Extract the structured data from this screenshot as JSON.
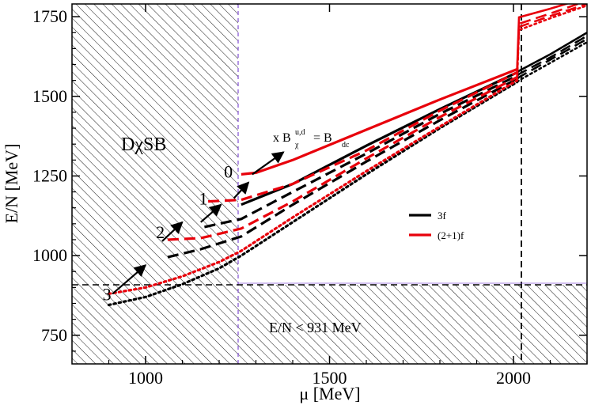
{
  "chart_data": {
    "type": "line",
    "xlabel": "μ [MeV]",
    "ylabel": "E/N [MeV]",
    "xlim": [
      800,
      2200
    ],
    "ylim": [
      660,
      1790
    ],
    "xticks": [
      1000,
      1500,
      2000
    ],
    "yticks": [
      750,
      1000,
      1250,
      1500,
      1750
    ],
    "region_labels": {
      "dcsb": "DχSB",
      "lower": "E/N < 931 MeV"
    },
    "annotation": {
      "prefix": "x B",
      "sup": "u,d",
      "sub": "χ",
      "eq": "= B",
      "eq_sub": "dc"
    },
    "reference_lines": {
      "x_boundary": 1250,
      "x_transition": 2015,
      "y_nucleon": 941
    },
    "point_labels": [
      {
        "text": "0",
        "x": 1225,
        "y": 1245
      },
      {
        "text": "1",
        "x": 1157,
        "y": 1160
      },
      {
        "text": "2",
        "x": 1040,
        "y": 1055
      },
      {
        "text": "3",
        "x": 895,
        "y": 860
      }
    ],
    "arrows": [
      {
        "from": [
          1290,
          1255
        ],
        "to": [
          1375,
          1325
        ]
      },
      {
        "from": [
          1240,
          1180
        ],
        "to": [
          1280,
          1230
        ]
      },
      {
        "from": [
          1150,
          1105
        ],
        "to": [
          1205,
          1160
        ]
      },
      {
        "from": [
          1045,
          1045
        ],
        "to": [
          1100,
          1105
        ]
      },
      {
        "from": [
          910,
          880
        ],
        "to": [
          1000,
          970
        ]
      }
    ],
    "legend": [
      {
        "label": "3f",
        "color": "#000000"
      },
      {
        "label": "(2+1)f",
        "color": "#e8000b"
      }
    ],
    "series": [
      {
        "name": "3f n=0",
        "color": "#000000",
        "dash": "solid",
        "x": [
          1260,
          1400,
          1600,
          1800,
          2010
        ],
        "y": [
          1160,
          1225,
          1345,
          1460,
          1575
        ],
        "x2": [
          2015,
          2100,
          2200
        ],
        "y2": [
          1580,
          1632,
          1700
        ]
      },
      {
        "name": "3f n=1",
        "color": "#000000",
        "dash": "long",
        "x": [
          1160,
          1260,
          1400,
          1600,
          1800,
          2010
        ],
        "y": [
          1090,
          1115,
          1200,
          1320,
          1445,
          1565
        ],
        "x2": [
          2015,
          2100,
          2200
        ],
        "y2": [
          1570,
          1622,
          1690
        ]
      },
      {
        "name": "3f n=2",
        "color": "#000000",
        "dash": "long",
        "x": [
          1060,
          1150,
          1260,
          1400,
          1600,
          1800,
          2010
        ],
        "y": [
          995,
          1020,
          1060,
          1160,
          1295,
          1425,
          1555
        ],
        "x2": [
          2015,
          2100,
          2200
        ],
        "y2": [
          1560,
          1615,
          1680
        ]
      },
      {
        "name": "3f n=3",
        "color": "#000000",
        "dash": "dot",
        "x": [
          900,
          1000,
          1100,
          1200,
          1260,
          1400,
          1600,
          1800,
          2010
        ],
        "y": [
          845,
          870,
          910,
          960,
          1000,
          1105,
          1255,
          1400,
          1545
        ],
        "x2": [
          2015,
          2100,
          2200
        ],
        "y2": [
          1550,
          1605,
          1670
        ]
      },
      {
        "name": "(2+1)f n=0",
        "color": "#e8000b",
        "dash": "solid",
        "x": [
          1260,
          1300,
          1400,
          1600,
          1800,
          2010
        ],
        "y": [
          1255,
          1260,
          1300,
          1395,
          1490,
          1585
        ],
        "x2": [
          2015,
          2100,
          2200
        ],
        "y2": [
          1748,
          1775,
          1810
        ]
      },
      {
        "name": "(2+1)f n=1",
        "color": "#e8000b",
        "dash": "long",
        "x": [
          1170,
          1260,
          1400,
          1600,
          1800,
          2010
        ],
        "y": [
          1170,
          1175,
          1225,
          1330,
          1455,
          1575
        ],
        "x2": [
          2015,
          2100,
          2200
        ],
        "y2": [
          1728,
          1760,
          1800
        ]
      },
      {
        "name": "(2+1)f n=2",
        "color": "#e8000b",
        "dash": "long",
        "x": [
          1060,
          1150,
          1260,
          1400,
          1600,
          1800,
          2010
        ],
        "y": [
          1050,
          1055,
          1085,
          1170,
          1305,
          1435,
          1560
        ],
        "x2": [
          2015,
          2100,
          2200
        ],
        "y2": [
          1718,
          1752,
          1790
        ]
      },
      {
        "name": "(2+1)f n=3",
        "color": "#e8000b",
        "dash": "dot",
        "x": [
          900,
          1000,
          1100,
          1200,
          1260,
          1400,
          1600,
          1800,
          2010
        ],
        "y": [
          880,
          900,
          935,
          980,
          1015,
          1120,
          1265,
          1405,
          1550
        ],
        "x2": [
          2015,
          2100,
          2200
        ],
        "y2": [
          1708,
          1745,
          1785
        ]
      }
    ]
  }
}
